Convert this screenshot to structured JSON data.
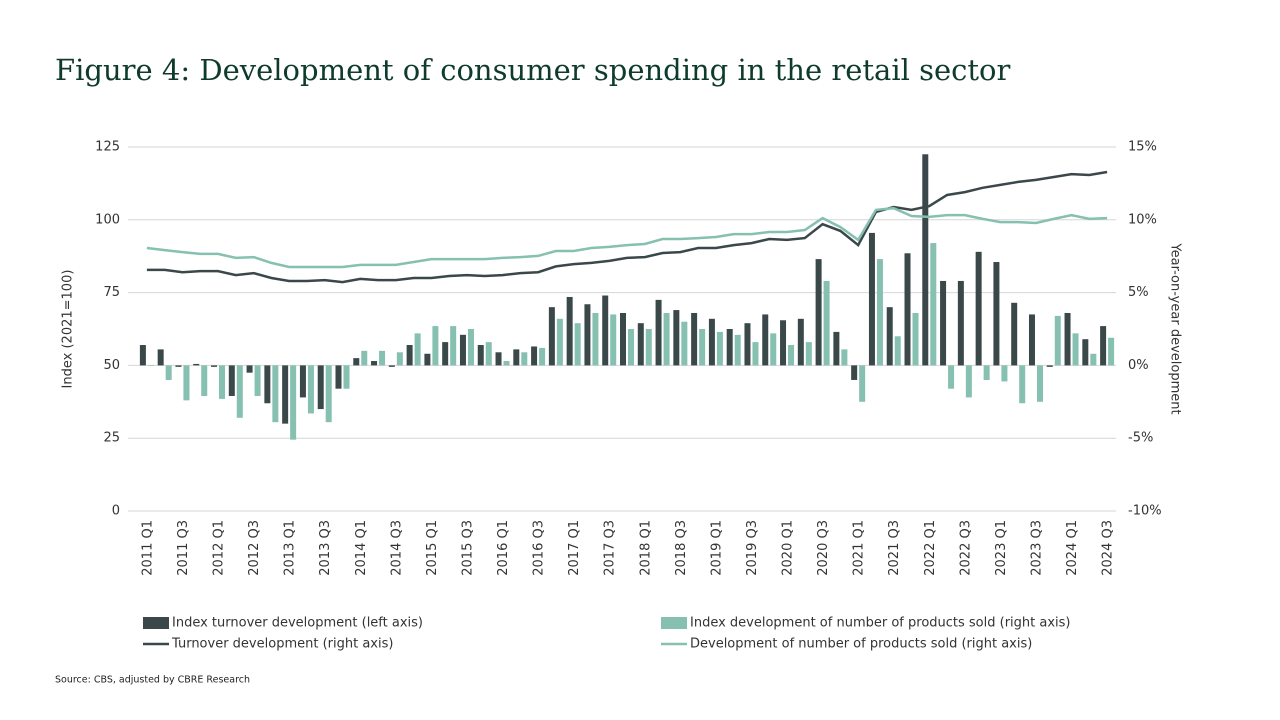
{
  "chart_data": {
    "type": "bar",
    "title": "Figure 4: Development of consumer spending in the retail sector",
    "ylabel": "Index (2021=100)",
    "y2label": "Year-on-year development",
    "source": "Source: CBS, adjusted by CBRE Research",
    "categories": [
      "2011 Q1",
      null,
      "2011 Q3",
      null,
      "2012 Q1",
      null,
      "2012 Q3",
      null,
      "2013 Q1",
      null,
      "2013 Q3",
      null,
      "2014 Q1",
      null,
      "2014 Q3",
      null,
      "2015 Q1",
      null,
      "2015 Q3",
      null,
      "2016 Q1",
      null,
      "2016 Q3",
      null,
      "2017 Q1",
      null,
      "2017 Q3",
      null,
      "2018 Q1",
      null,
      "2018 Q3",
      null,
      "2019 Q1",
      null,
      "2019 Q3",
      null,
      "2020 Q1",
      null,
      "2020 Q3",
      null,
      "2021 Q1",
      null,
      "2021 Q3",
      null,
      "2022 Q1",
      null,
      "2022 Q3",
      null,
      "2023 Q1",
      null,
      "2023 Q3",
      null,
      "2024 Q1",
      null,
      "2024 Q3"
    ],
    "ylim": [
      0,
      125
    ],
    "yticks": [
      0,
      25,
      50,
      75,
      100,
      125
    ],
    "y2lim": [
      -10,
      15
    ],
    "y2ticks": [
      {
        "value": -10,
        "label": "-10%"
      },
      {
        "value": -5,
        "label": "-5%"
      },
      {
        "value": 0,
        "label": "0%"
      },
      {
        "value": 5,
        "label": "5%"
      },
      {
        "value": 10,
        "label": "10%"
      },
      {
        "value": 15,
        "label": "15%"
      }
    ],
    "grid": true,
    "series": [
      {
        "name": "Index turnover development (left axis)",
        "type": "bar",
        "axis": "y2",
        "color": "#3b4849",
        "values": [
          1.4,
          1.1,
          -0.1,
          0.1,
          -0.1,
          -2.1,
          -0.5,
          -2.6,
          -4.0,
          -2.2,
          -3.0,
          -1.6,
          0.5,
          0.3,
          -0.1,
          1.4,
          0.8,
          1.6,
          2.1,
          1.4,
          0.9,
          1.1,
          1.3,
          4.0,
          4.7,
          4.2,
          4.8,
          3.6,
          2.9,
          4.5,
          3.8,
          3.6,
          3.2,
          2.5,
          2.9,
          3.5,
          3.1,
          3.2,
          7.3,
          2.3,
          -1.0,
          9.1,
          4.0,
          7.7,
          14.5,
          5.8,
          5.8,
          7.8,
          7.1,
          4.3,
          3.5,
          -0.1,
          3.6,
          1.8,
          2.7
        ]
      },
      {
        "name": "Index development of number of products sold (right axis)",
        "type": "bar",
        "axis": "y2",
        "color": "#85c0b0",
        "values": [
          0,
          -1.0,
          -2.4,
          -2.1,
          -2.3,
          -3.6,
          -2.1,
          -3.9,
          -5.1,
          -3.3,
          -3.9,
          -1.6,
          1.0,
          1.0,
          0.9,
          2.2,
          2.7,
          2.7,
          2.5,
          1.6,
          0.3,
          0.9,
          1.2,
          3.2,
          2.9,
          3.6,
          3.5,
          2.5,
          2.5,
          3.6,
          3.0,
          2.5,
          2.3,
          2.1,
          1.6,
          2.2,
          1.4,
          1.6,
          5.8,
          1.1,
          -2.5,
          7.3,
          2.0,
          3.6,
          8.4,
          -1.6,
          -2.2,
          -1.0,
          -1.1,
          -2.6,
          -2.5,
          3.4,
          2.2,
          0.8,
          1.9
        ]
      },
      {
        "name": "Turnover development (right axis)",
        "type": "line",
        "axis": "y",
        "color": "#3b4849",
        "values": [
          82.8,
          82.8,
          82,
          82.4,
          82.4,
          81,
          81.7,
          80,
          79,
          79,
          79.3,
          78.6,
          79.7,
          79.3,
          79.3,
          80,
          80,
          80.7,
          81,
          80.7,
          81,
          81.7,
          82,
          84,
          84.8,
          85.2,
          85.9,
          86.9,
          87.2,
          88.6,
          88.9,
          90.3,
          90.3,
          91.3,
          92,
          93.4,
          93.1,
          93.7,
          98.5,
          96.2,
          91.3,
          102.7,
          104.4,
          103.4,
          104.7,
          108.5,
          109.5,
          111,
          112,
          113,
          113.7,
          114.7,
          115.7,
          115.4,
          116.4
        ]
      },
      {
        "name": "Development of number of products sold (right axis)",
        "type": "line",
        "axis": "y",
        "color": "#85c0b0",
        "values": [
          90.3,
          89.6,
          88.9,
          88.3,
          88.3,
          86.9,
          87.2,
          85.2,
          83.8,
          83.8,
          83.8,
          83.8,
          84.5,
          84.5,
          84.5,
          85.5,
          86.5,
          86.5,
          86.5,
          86.5,
          86.9,
          87.2,
          87.6,
          89.3,
          89.3,
          90.3,
          90.7,
          91.3,
          91.7,
          93.4,
          93.4,
          93.7,
          94.1,
          95.1,
          95.1,
          95.8,
          95.8,
          96.5,
          100.6,
          97.5,
          93.1,
          103.4,
          104,
          101.3,
          101,
          101.6,
          101.6,
          100.3,
          99.2,
          99.2,
          98.9,
          100.3,
          101.6,
          100.3,
          100.6
        ]
      }
    ]
  }
}
